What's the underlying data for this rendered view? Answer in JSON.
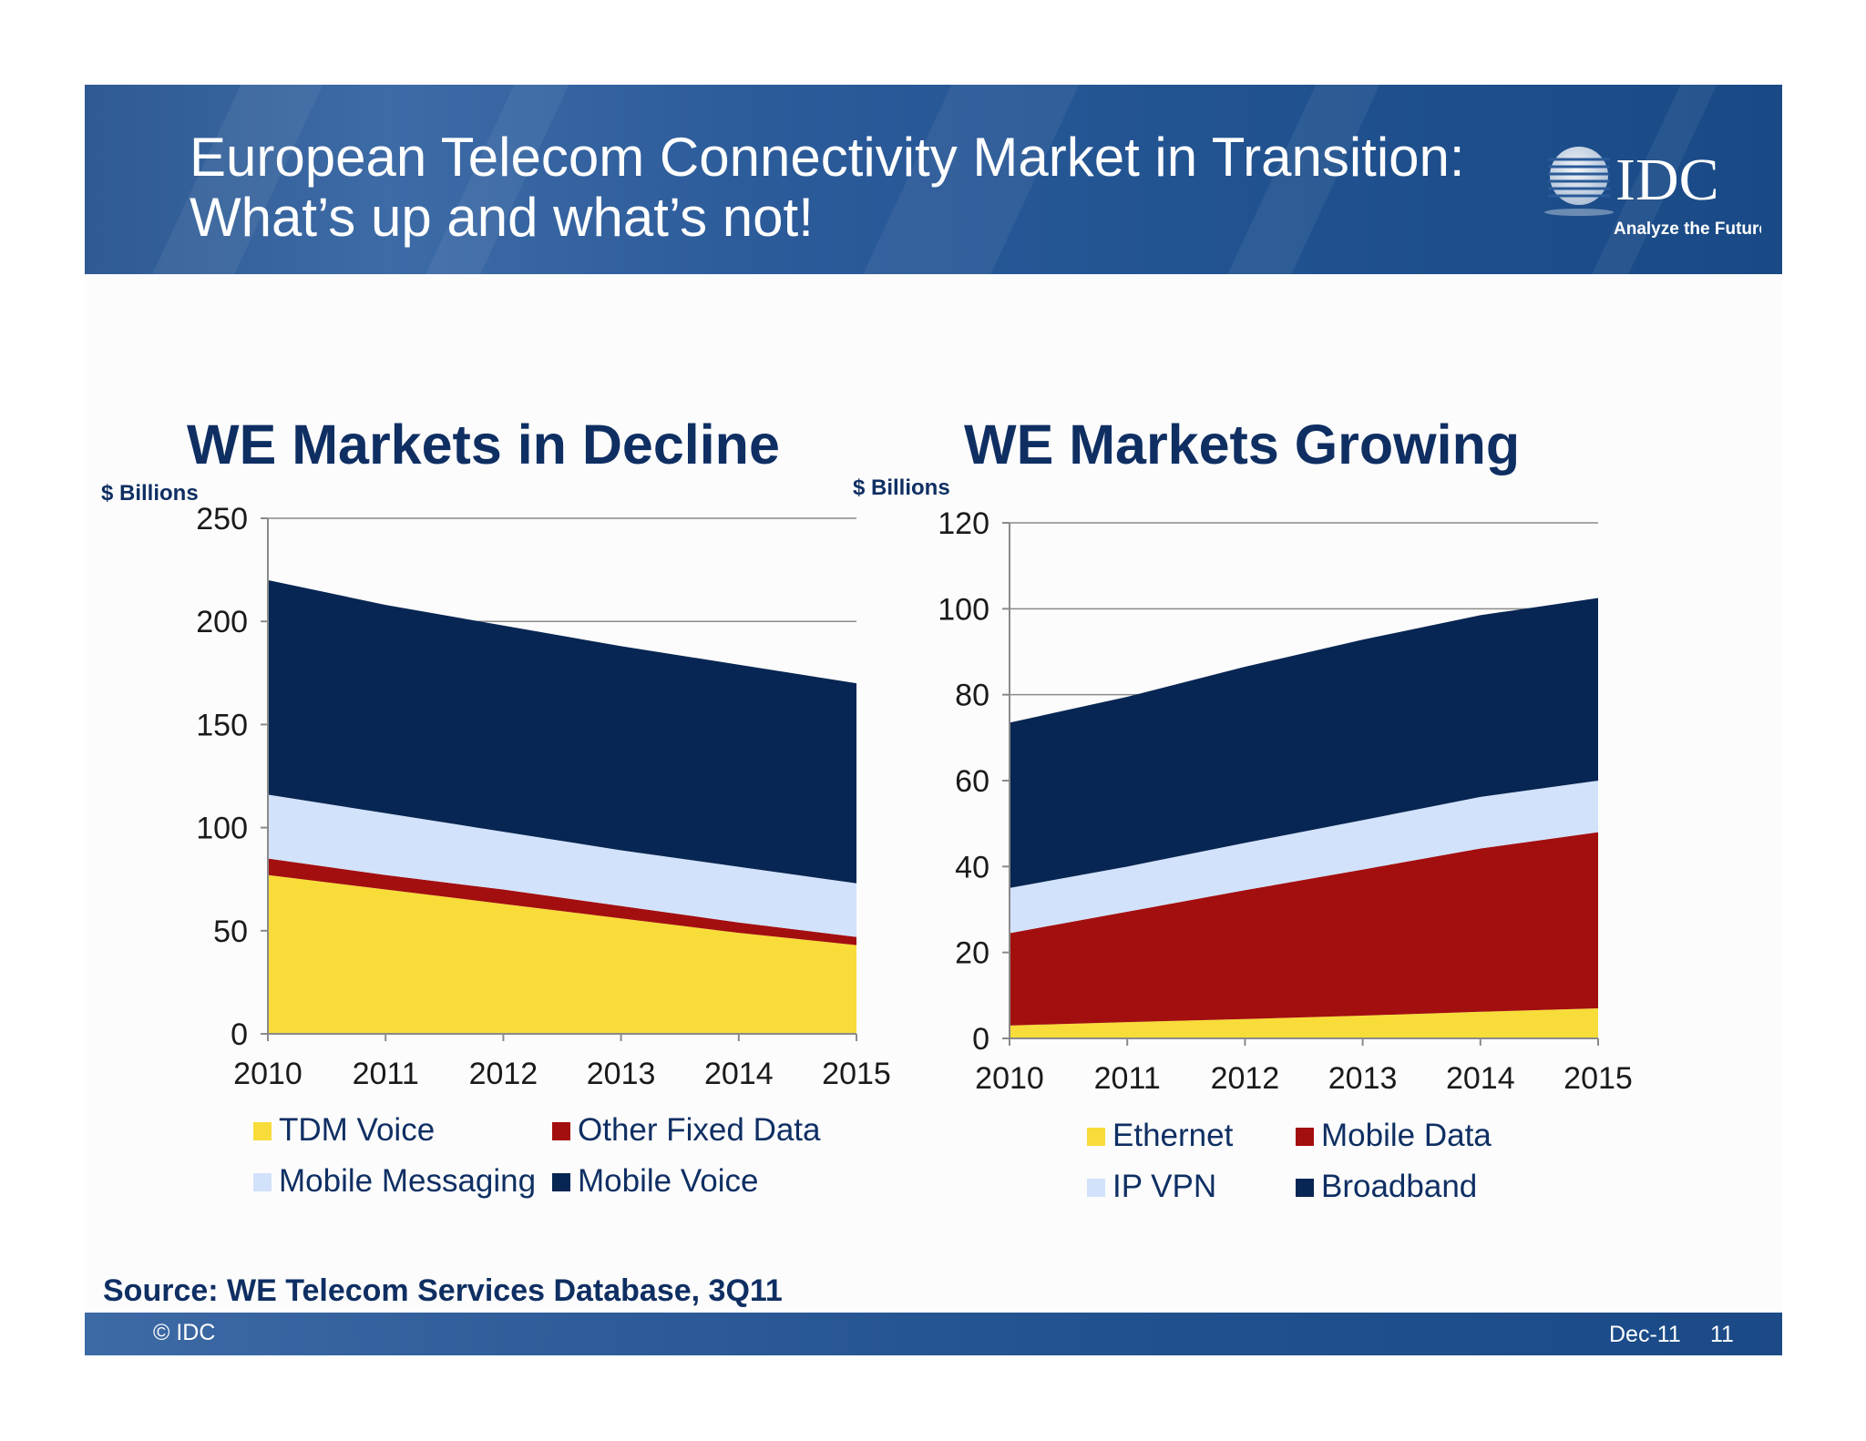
{
  "header": {
    "title": "European Telecom Connectivity Market in Transition:\nWhat’s up and what’s not!",
    "logo_text": "IDC",
    "logo_tagline": "Analyze the Future"
  },
  "colors": {
    "header_blue": "#2a5a98",
    "title_navy": "#0f2f63",
    "yellow": "#f8dc3a",
    "red": "#a30f0f",
    "light_blue": "#d2e2fb",
    "navy": "#082653"
  },
  "chart_data": [
    {
      "type": "area",
      "stacked": true,
      "title": "WE Markets in Decline",
      "ylabel": "$ Billions",
      "xlabel": "",
      "categories": [
        "2010",
        "2011",
        "2012",
        "2013",
        "2014",
        "2015"
      ],
      "ylim": [
        0,
        250
      ],
      "yticks": [
        0,
        50,
        100,
        150,
        200,
        250
      ],
      "grid": true,
      "legend_position": "bottom",
      "series": [
        {
          "name": "TDM Voice",
          "color": "#f8dc3a",
          "values": [
            77,
            70,
            63,
            56,
            49,
            43
          ]
        },
        {
          "name": "Other Fixed Data",
          "color": "#a30f0f",
          "values": [
            8,
            7,
            7,
            6,
            5,
            4
          ]
        },
        {
          "name": "Mobile Messaging",
          "color": "#d2e2fb",
          "values": [
            31,
            30,
            28,
            27,
            27,
            26
          ]
        },
        {
          "name": "Mobile Voice",
          "color": "#082653",
          "values": [
            104,
            101,
            100,
            99,
            98,
            97
          ]
        }
      ]
    },
    {
      "type": "area",
      "stacked": true,
      "title": "WE Markets Growing",
      "ylabel": "$ Billions",
      "xlabel": "",
      "categories": [
        "2010",
        "2011",
        "2012",
        "2013",
        "2014",
        "2015"
      ],
      "ylim": [
        0,
        120
      ],
      "yticks": [
        0,
        20,
        40,
        60,
        80,
        100,
        120
      ],
      "grid": true,
      "legend_position": "bottom",
      "series": [
        {
          "name": "Ethernet",
          "color": "#f8dc3a",
          "values": [
            3,
            3.8,
            4.5,
            5.3,
            6.2,
            7
          ]
        },
        {
          "name": "Mobile Data",
          "color": "#a30f0f",
          "values": [
            21.5,
            25.7,
            30,
            34,
            38,
            41
          ]
        },
        {
          "name": "IP VPN",
          "color": "#d2e2fb",
          "values": [
            10.5,
            10.5,
            11,
            11.5,
            12,
            12
          ]
        },
        {
          "name": "Broadband",
          "color": "#082653",
          "values": [
            38.5,
            39.5,
            41,
            42,
            42.3,
            42.5
          ]
        }
      ]
    }
  ],
  "legend_left": [
    "TDM Voice",
    "Other Fixed Data",
    "Mobile Messaging",
    "Mobile Voice"
  ],
  "legend_right": [
    "Ethernet",
    "Mobile Data",
    "IP VPN",
    "Broadband"
  ],
  "source": "Source: WE Telecom Services Database, 3Q11",
  "footer": {
    "copyright": "© IDC",
    "date": "Dec-11",
    "page": "11"
  }
}
